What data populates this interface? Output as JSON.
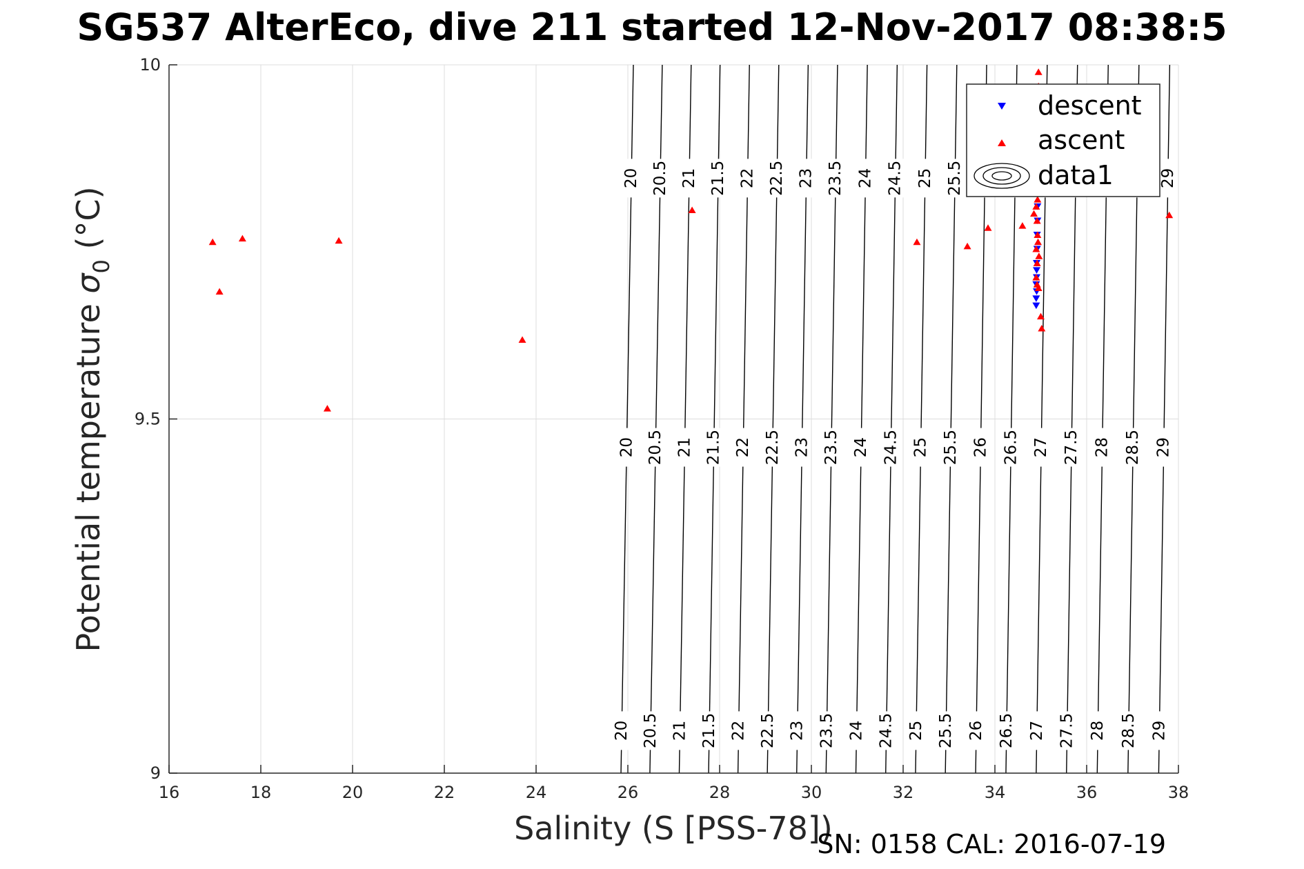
{
  "chart_data": {
    "type": "scatter",
    "title": "SG537 AlterEco, dive 211 started 12-Nov-2017 08:38:5",
    "xlabel": "Salinity (S [PSS-78])",
    "ylabel": "Potential temperature σ₀ (°C)",
    "ylabel_main": "Potential temperature ",
    "ylabel_sigma": "σ",
    "ylabel_sub": "0",
    "ylabel_unit": " (°C)",
    "xlim": [
      16,
      38
    ],
    "ylim": [
      9,
      10
    ],
    "xticks": [
      "16",
      "18",
      "20",
      "22",
      "24",
      "26",
      "28",
      "30",
      "32",
      "34",
      "36",
      "38"
    ],
    "yticks": [
      "9",
      "9.5",
      "10"
    ],
    "grid": true,
    "legend_position": "top-right",
    "series": [
      {
        "name": "descent",
        "color": "#0000ff",
        "marker": "triangle-down",
        "points": [
          [
            34.9,
            9.66
          ],
          [
            34.9,
            9.67
          ],
          [
            34.91,
            9.68
          ],
          [
            34.9,
            9.69
          ],
          [
            34.91,
            9.7
          ],
          [
            34.91,
            9.71
          ],
          [
            34.91,
            9.72
          ],
          [
            34.92,
            9.74
          ],
          [
            34.92,
            9.76
          ],
          [
            34.93,
            9.78
          ],
          [
            34.93,
            9.8
          ],
          [
            34.92,
            9.82
          ],
          [
            34.93,
            9.84
          ],
          [
            34.92,
            9.86
          ],
          [
            34.93,
            9.88
          ]
        ]
      },
      {
        "name": "ascent",
        "color": "#ff0000",
        "marker": "triangle-up",
        "points": [
          [
            16.95,
            9.75
          ],
          [
            17.1,
            9.68
          ],
          [
            17.6,
            9.755
          ],
          [
            19.45,
            9.515
          ],
          [
            19.7,
            9.752
          ],
          [
            23.7,
            9.612
          ],
          [
            27.4,
            9.795
          ],
          [
            32.3,
            9.75
          ],
          [
            33.4,
            9.744
          ],
          [
            33.85,
            9.77
          ],
          [
            34.6,
            9.773
          ],
          [
            34.85,
            9.79
          ],
          [
            34.9,
            9.8
          ],
          [
            34.92,
            9.78
          ],
          [
            34.93,
            9.76
          ],
          [
            34.9,
            9.74
          ],
          [
            34.92,
            9.72
          ],
          [
            34.9,
            9.7
          ],
          [
            34.92,
            9.69
          ],
          [
            34.95,
            9.685
          ],
          [
            35.0,
            9.645
          ],
          [
            35.02,
            9.628
          ],
          [
            34.95,
            9.82
          ],
          [
            34.94,
            9.84
          ],
          [
            34.95,
            9.86
          ],
          [
            34.93,
            9.87
          ],
          [
            34.95,
            9.89
          ],
          [
            34.92,
            9.91
          ],
          [
            34.95,
            9.93
          ],
          [
            34.93,
            9.95
          ],
          [
            34.95,
            9.97
          ],
          [
            34.95,
            9.99
          ],
          [
            34.94,
            9.75
          ],
          [
            34.96,
            9.73
          ],
          [
            34.93,
            9.81
          ],
          [
            37.8,
            9.788
          ]
        ]
      }
    ],
    "contours": {
      "name": "data1",
      "levels": [
        "20",
        "20.5",
        "21",
        "21.5",
        "22",
        "22.5",
        "23",
        "23.5",
        "24",
        "24.5",
        "25",
        "25.5",
        "26",
        "26.5",
        "27",
        "27.5",
        "28",
        "28.5",
        "29"
      ],
      "salinity_at_t10": [
        26.12,
        26.75,
        27.38,
        28.01,
        28.65,
        29.29,
        29.93,
        30.57,
        31.22,
        31.87,
        32.52,
        33.17,
        33.82,
        34.48,
        35.14,
        35.8,
        36.47,
        37.14,
        37.81
      ],
      "salinity_at_t9": [
        25.85,
        26.48,
        27.12,
        27.76,
        28.4,
        29.04,
        29.68,
        30.32,
        30.97,
        31.62,
        32.27,
        32.92,
        33.58,
        34.24,
        34.9,
        35.56,
        36.23,
        36.9,
        37.57
      ],
      "line_color": "#000000"
    }
  },
  "footer_text": "SN: 0158  CAL: 2016-07-19"
}
